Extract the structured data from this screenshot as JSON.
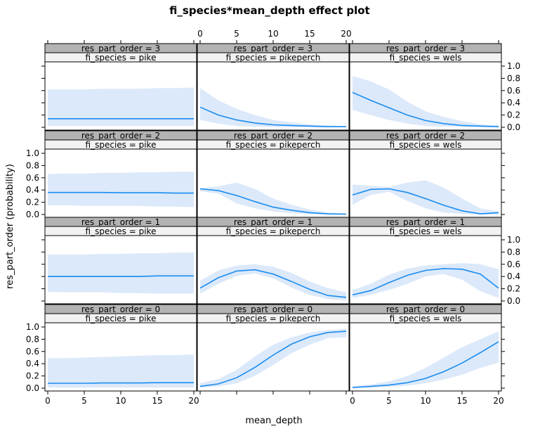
{
  "chart_data": {
    "type": "line",
    "title": "fi_species*mean_depth effect plot",
    "xlabel": "mean_depth",
    "ylabel": "res_part_order (probability)",
    "xlim": [
      0,
      20
    ],
    "ylim": [
      0,
      1
    ],
    "x_ticks": [
      0,
      5,
      10,
      15,
      20
    ],
    "y_ticks": [
      0.0,
      0.2,
      0.4,
      0.6,
      0.8,
      1.0
    ],
    "y_tick_labels": [
      "0.0",
      "0.2",
      "0.4",
      "0.6",
      "0.8",
      "1.0"
    ],
    "x": [
      0,
      2.5,
      5,
      7.5,
      10,
      12.5,
      15,
      17.5,
      20
    ],
    "row_labels": [
      "res_part_order = 3",
      "res_part_order = 2",
      "res_part_order = 1",
      "res_part_order = 0"
    ],
    "column_labels": [
      "fi_species = pike",
      "fi_species = pikeperch",
      "fi_species = wels"
    ],
    "panels": [
      {
        "row": 0,
        "col": 0,
        "fit": [
          0.14,
          0.14,
          0.14,
          0.14,
          0.14,
          0.14,
          0.14,
          0.14,
          0.14
        ],
        "lower": [
          0.02,
          0.02,
          0.02,
          0.02,
          0.02,
          0.02,
          0.02,
          0.02,
          0.02
        ],
        "upper": [
          0.62,
          0.62,
          0.62,
          0.63,
          0.63,
          0.63,
          0.64,
          0.64,
          0.65
        ]
      },
      {
        "row": 0,
        "col": 1,
        "fit": [
          0.33,
          0.2,
          0.12,
          0.07,
          0.04,
          0.03,
          0.02,
          0.01,
          0.01
        ],
        "lower": [
          0.12,
          0.06,
          0.02,
          0.01,
          0.005,
          0.0,
          0.0,
          0.0,
          0.0
        ],
        "upper": [
          0.64,
          0.44,
          0.3,
          0.2,
          0.12,
          0.08,
          0.05,
          0.03,
          0.02
        ]
      },
      {
        "row": 0,
        "col": 2,
        "fit": [
          0.57,
          0.44,
          0.32,
          0.2,
          0.11,
          0.06,
          0.03,
          0.02,
          0.01
        ],
        "lower": [
          0.28,
          0.2,
          0.12,
          0.06,
          0.02,
          0.01,
          0.005,
          0.0,
          0.0
        ],
        "upper": [
          0.84,
          0.75,
          0.62,
          0.42,
          0.26,
          0.17,
          0.1,
          0.05,
          0.03
        ]
      },
      {
        "row": 1,
        "col": 0,
        "fit": [
          0.36,
          0.36,
          0.36,
          0.36,
          0.355,
          0.355,
          0.355,
          0.35,
          0.35
        ],
        "lower": [
          0.15,
          0.15,
          0.14,
          0.14,
          0.14,
          0.14,
          0.13,
          0.13,
          0.12
        ],
        "upper": [
          0.66,
          0.67,
          0.67,
          0.68,
          0.68,
          0.69,
          0.69,
          0.7,
          0.7
        ]
      },
      {
        "row": 1,
        "col": 1,
        "fit": [
          0.42,
          0.39,
          0.31,
          0.21,
          0.12,
          0.07,
          0.03,
          0.01,
          0.005
        ],
        "lower": [
          0.38,
          0.34,
          0.18,
          0.1,
          0.05,
          0.02,
          0.005,
          0.0,
          0.0
        ],
        "upper": [
          0.43,
          0.46,
          0.52,
          0.42,
          0.26,
          0.16,
          0.08,
          0.03,
          0.01
        ]
      },
      {
        "row": 1,
        "col": 2,
        "fit": [
          0.32,
          0.41,
          0.42,
          0.36,
          0.26,
          0.15,
          0.06,
          0.01,
          0.03
        ],
        "lower": [
          0.16,
          0.32,
          0.37,
          0.22,
          0.1,
          0.03,
          0.01,
          0.0,
          0.0
        ],
        "upper": [
          0.49,
          0.47,
          0.45,
          0.52,
          0.56,
          0.44,
          0.26,
          0.1,
          0.05
        ]
      },
      {
        "row": 2,
        "col": 0,
        "fit": [
          0.4,
          0.4,
          0.4,
          0.4,
          0.4,
          0.4,
          0.41,
          0.41,
          0.41
        ],
        "lower": [
          0.15,
          0.14,
          0.14,
          0.14,
          0.13,
          0.13,
          0.12,
          0.12,
          0.12
        ],
        "upper": [
          0.76,
          0.76,
          0.76,
          0.77,
          0.77,
          0.78,
          0.78,
          0.79,
          0.79
        ]
      },
      {
        "row": 2,
        "col": 1,
        "fit": [
          0.21,
          0.38,
          0.49,
          0.51,
          0.44,
          0.32,
          0.19,
          0.09,
          0.06
        ],
        "lower": [
          0.12,
          0.28,
          0.41,
          0.45,
          0.37,
          0.22,
          0.1,
          0.03,
          0.01
        ],
        "upper": [
          0.33,
          0.5,
          0.58,
          0.6,
          0.56,
          0.46,
          0.32,
          0.21,
          0.14
        ]
      },
      {
        "row": 2,
        "col": 2,
        "fit": [
          0.1,
          0.17,
          0.3,
          0.42,
          0.5,
          0.53,
          0.52,
          0.44,
          0.21
        ],
        "lower": [
          0.05,
          0.1,
          0.18,
          0.28,
          0.4,
          0.44,
          0.35,
          0.16,
          0.05
        ],
        "upper": [
          0.18,
          0.28,
          0.43,
          0.53,
          0.58,
          0.6,
          0.62,
          0.6,
          0.52
        ]
      },
      {
        "row": 3,
        "col": 0,
        "fit": [
          0.08,
          0.08,
          0.08,
          0.085,
          0.085,
          0.085,
          0.09,
          0.09,
          0.09
        ],
        "lower": [
          0.01,
          0.01,
          0.01,
          0.01,
          0.01,
          0.01,
          0.01,
          0.01,
          0.01
        ],
        "upper": [
          0.49,
          0.49,
          0.5,
          0.51,
          0.52,
          0.53,
          0.54,
          0.54,
          0.55
        ]
      },
      {
        "row": 3,
        "col": 1,
        "fit": [
          0.03,
          0.07,
          0.17,
          0.34,
          0.54,
          0.72,
          0.84,
          0.91,
          0.93
        ],
        "lower": [
          0.01,
          0.03,
          0.08,
          0.2,
          0.38,
          0.57,
          0.71,
          0.82,
          0.83
        ],
        "upper": [
          0.08,
          0.15,
          0.3,
          0.52,
          0.71,
          0.83,
          0.91,
          0.95,
          0.97
        ]
      },
      {
        "row": 3,
        "col": 2,
        "fit": [
          0.01,
          0.03,
          0.05,
          0.09,
          0.16,
          0.27,
          0.41,
          0.58,
          0.76
        ],
        "lower": [
          0.005,
          0.01,
          0.02,
          0.04,
          0.08,
          0.14,
          0.22,
          0.33,
          0.42
        ],
        "upper": [
          0.03,
          0.06,
          0.11,
          0.2,
          0.33,
          0.5,
          0.67,
          0.8,
          0.93
        ]
      }
    ]
  }
}
